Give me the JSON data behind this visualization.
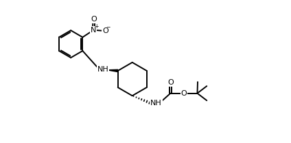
{
  "bg_color": "#ffffff",
  "line_color": "#000000",
  "line_width": 1.4,
  "font_size": 8.0,
  "figsize": [
    4.24,
    2.08
  ],
  "dpi": 100,
  "xlim": [
    -0.3,
    10.8
  ],
  "ylim": [
    0.0,
    7.5
  ]
}
